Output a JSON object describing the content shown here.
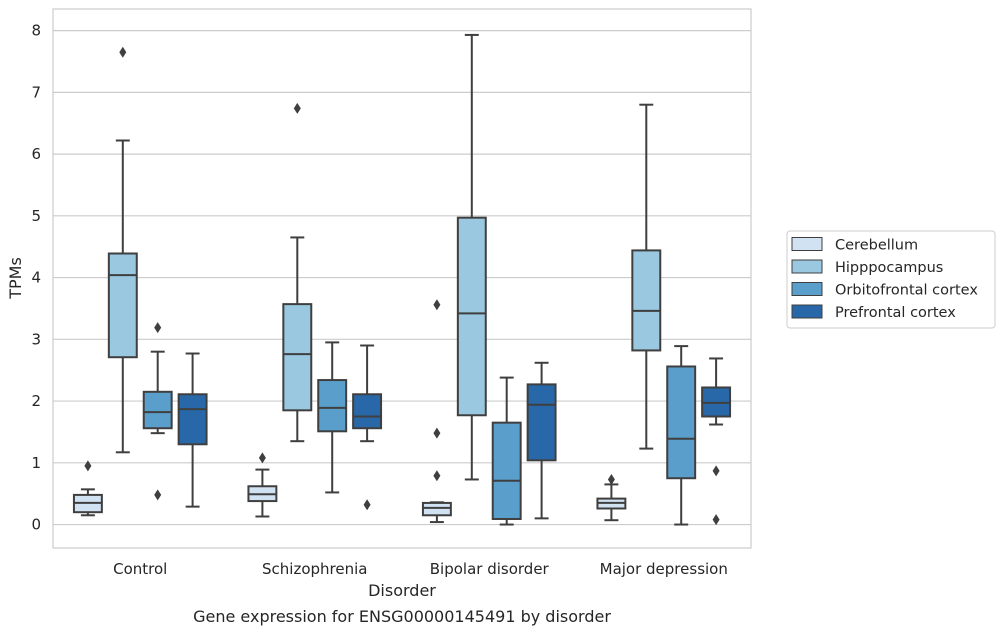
{
  "chart_data": {
    "type": "box",
    "xlabel": "Disorder",
    "ylabel": "TPMs",
    "caption": "Gene expression for ENSG00000145491 by disorder",
    "ylim": [
      -0.38,
      8.35
    ],
    "yticks": [
      "0",
      "1",
      "2",
      "3",
      "4",
      "5",
      "6",
      "7",
      "8"
    ],
    "grid": "horizontal",
    "legend_position": "right",
    "categories": [
      "Control",
      "Schizophrenia",
      "Bipolar disorder",
      "Major depression"
    ],
    "series": [
      {
        "name": "Cerebellum",
        "color": "#d1e2f2",
        "boxes": [
          {
            "whisker_low": 0.15,
            "q1": 0.2,
            "median": 0.35,
            "q3": 0.48,
            "whisker_high": 0.57,
            "outliers": [
              0.95
            ]
          },
          {
            "whisker_low": 0.13,
            "q1": 0.38,
            "median": 0.49,
            "q3": 0.62,
            "whisker_high": 0.89,
            "outliers": [
              1.08
            ]
          },
          {
            "whisker_low": 0.04,
            "q1": 0.15,
            "median": 0.27,
            "q3": 0.35,
            "whisker_high": 0.36,
            "outliers": [
              0.79,
              1.48,
              3.56
            ]
          },
          {
            "whisker_low": 0.07,
            "q1": 0.26,
            "median": 0.35,
            "q3": 0.42,
            "whisker_high": 0.65,
            "outliers": [
              0.73
            ]
          }
        ]
      },
      {
        "name": "Hipppocampus",
        "color": "#9ac8e0",
        "boxes": [
          {
            "whisker_low": 1.17,
            "q1": 2.71,
            "median": 4.04,
            "q3": 4.39,
            "whisker_high": 6.22,
            "outliers": [
              7.65
            ]
          },
          {
            "whisker_low": 1.35,
            "q1": 1.85,
            "median": 2.76,
            "q3": 3.57,
            "whisker_high": 4.65,
            "outliers": [
              6.74
            ]
          },
          {
            "whisker_low": 0.73,
            "q1": 1.77,
            "median": 3.42,
            "q3": 4.97,
            "whisker_high": 7.93,
            "outliers": []
          },
          {
            "whisker_low": 1.23,
            "q1": 2.82,
            "median": 3.46,
            "q3": 4.44,
            "whisker_high": 6.8,
            "outliers": []
          }
        ]
      },
      {
        "name": "Orbitofrontal cortex",
        "color": "#5a9fcc",
        "boxes": [
          {
            "whisker_low": 1.48,
            "q1": 1.56,
            "median": 1.82,
            "q3": 2.15,
            "whisker_high": 2.8,
            "outliers": [
              0.48,
              3.19
            ]
          },
          {
            "whisker_low": 0.52,
            "q1": 1.51,
            "median": 1.89,
            "q3": 2.34,
            "whisker_high": 2.95,
            "outliers": []
          },
          {
            "whisker_low": 0.0,
            "q1": 0.09,
            "median": 0.71,
            "q3": 1.65,
            "whisker_high": 2.38,
            "outliers": []
          },
          {
            "whisker_low": 0.0,
            "q1": 0.75,
            "median": 1.39,
            "q3": 2.56,
            "whisker_high": 2.89,
            "outliers": []
          }
        ]
      },
      {
        "name": "Prefrontal cortex",
        "color": "#2868a8",
        "boxes": [
          {
            "whisker_low": 0.29,
            "q1": 1.3,
            "median": 1.87,
            "q3": 2.11,
            "whisker_high": 2.77,
            "outliers": []
          },
          {
            "whisker_low": 1.35,
            "q1": 1.56,
            "median": 1.75,
            "q3": 2.11,
            "whisker_high": 2.9,
            "outliers": [
              0.32
            ]
          },
          {
            "whisker_low": 0.1,
            "q1": 1.04,
            "median": 1.94,
            "q3": 2.27,
            "whisker_high": 2.62,
            "outliers": []
          },
          {
            "whisker_low": 1.62,
            "q1": 1.75,
            "median": 1.97,
            "q3": 2.22,
            "whisker_high": 2.69,
            "outliers": [
              0.08,
              0.87
            ]
          }
        ]
      }
    ]
  }
}
